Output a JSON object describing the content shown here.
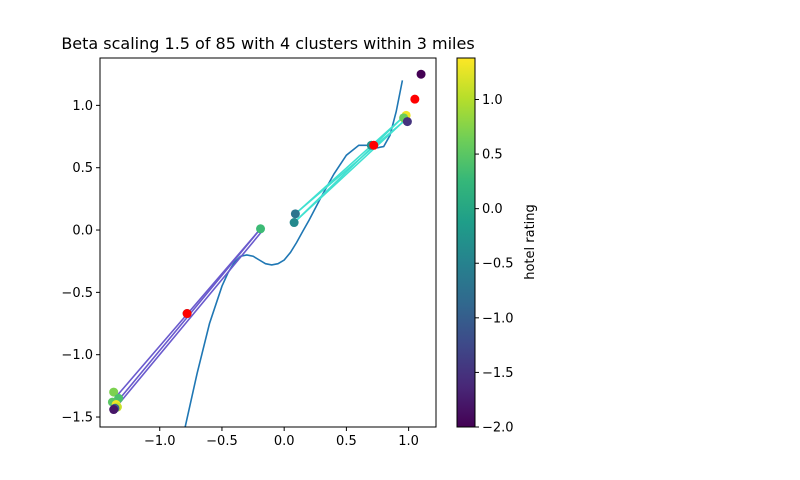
{
  "chart_data": {
    "type": "scatter",
    "title": "Beta scaling 1.5 of 85 with 4 clusters within 3 miles",
    "xlabel": "",
    "ylabel": "",
    "xlim": [
      -1.48,
      1.22
    ],
    "ylim": [
      -1.58,
      1.38
    ],
    "x_ticks": [
      -1.0,
      -0.5,
      0.0,
      0.5,
      1.0
    ],
    "x_tick_labels": [
      "−1.0",
      "−0.5",
      "0.0",
      "0.5",
      "1.0"
    ],
    "y_ticks": [
      -1.5,
      -1.0,
      -0.5,
      0.0,
      0.5,
      1.0
    ],
    "y_tick_labels": [
      "−1.5",
      "−1.0",
      "−0.5",
      "0.0",
      "0.5",
      "1.0"
    ],
    "grid": false,
    "curve": {
      "color": "#1f77b4",
      "x": [
        -0.8,
        -0.7,
        -0.6,
        -0.5,
        -0.45,
        -0.4,
        -0.35,
        -0.3,
        -0.25,
        -0.2,
        -0.15,
        -0.1,
        -0.05,
        0.0,
        0.05,
        0.1,
        0.15,
        0.2,
        0.3,
        0.4,
        0.5,
        0.6,
        0.7,
        0.75,
        0.8,
        0.85,
        0.9,
        0.95
      ],
      "y": [
        -1.6,
        -1.15,
        -0.75,
        -0.45,
        -0.34,
        -0.26,
        -0.21,
        -0.2,
        -0.21,
        -0.24,
        -0.27,
        -0.28,
        -0.27,
        -0.24,
        -0.18,
        -0.1,
        -0.01,
        0.08,
        0.27,
        0.45,
        0.6,
        0.68,
        0.68,
        0.66,
        0.67,
        0.76,
        0.95,
        1.2
      ]
    },
    "points": [
      {
        "x": 1.1,
        "y": 1.25,
        "rating": -2.0
      },
      {
        "x": 0.98,
        "y": 0.92,
        "rating": 1.3
      },
      {
        "x": 0.96,
        "y": 0.9,
        "rating": 0.6
      },
      {
        "x": 0.99,
        "y": 0.87,
        "rating": -1.5
      },
      {
        "x": 0.7,
        "y": 0.68,
        "rating": -0.3
      },
      {
        "x": 0.09,
        "y": 0.13,
        "rating": -0.7
      },
      {
        "x": 0.08,
        "y": 0.06,
        "rating": -0.4
      },
      {
        "x": -0.19,
        "y": 0.01,
        "rating": 0.3
      },
      {
        "x": -0.78,
        "y": -0.67,
        "rating": -0.5
      },
      {
        "x": -1.37,
        "y": -1.3,
        "rating": 0.7
      },
      {
        "x": -1.33,
        "y": -1.35,
        "rating": 0.4
      },
      {
        "x": -1.38,
        "y": -1.38,
        "rating": 0.5
      },
      {
        "x": -1.35,
        "y": -1.4,
        "rating": 1.3
      },
      {
        "x": -1.34,
        "y": -1.42,
        "rating": 1.1
      },
      {
        "x": -1.36,
        "y": -1.43,
        "rating": -1.0
      },
      {
        "x": -1.37,
        "y": -1.44,
        "rating": -1.8
      }
    ],
    "centroids": [
      {
        "x": 1.05,
        "y": 1.05,
        "color": "#ff0000"
      },
      {
        "x": 0.72,
        "y": 0.68,
        "color": "#ff0000"
      },
      {
        "x": -0.78,
        "y": -0.67,
        "color": "#ff0000"
      }
    ],
    "cluster_lines": [
      {
        "color": "#40e0d0",
        "segments": [
          [
            [
              0.97,
              0.92
            ],
            [
              0.08,
              0.06
            ]
          ],
          [
            [
              0.96,
              0.91
            ],
            [
              0.09,
              0.13
            ]
          ],
          [
            [
              0.99,
              0.9
            ],
            [
              0.08,
              0.06
            ]
          ],
          [
            [
              0.97,
              0.88
            ],
            [
              0.09,
              0.13
            ]
          ]
        ]
      },
      {
        "color": "#6a5acd",
        "segments": [
          [
            [
              -0.19,
              0.01
            ],
            [
              -1.37,
              -1.36
            ]
          ],
          [
            [
              -0.19,
              0.01
            ],
            [
              -1.36,
              -1.4
            ]
          ],
          [
            [
              -0.17,
              0.0
            ],
            [
              -1.35,
              -1.42
            ]
          ]
        ]
      }
    ],
    "colorbar": {
      "label": "hotel rating",
      "min": -2.0,
      "max": 1.38,
      "ticks": [
        -2.0,
        -1.5,
        -1.0,
        -0.5,
        0.0,
        0.5,
        1.0
      ],
      "tick_labels": [
        "−2.0",
        "−1.5",
        "−1.0",
        "−0.5",
        "0.0",
        "0.5",
        "1.0"
      ],
      "colormap": "viridis",
      "stops": [
        "#440154",
        "#482878",
        "#3e4989",
        "#31688e",
        "#26828e",
        "#1f9e89",
        "#35b779",
        "#6ece58",
        "#b5de2b",
        "#fde725"
      ]
    }
  }
}
